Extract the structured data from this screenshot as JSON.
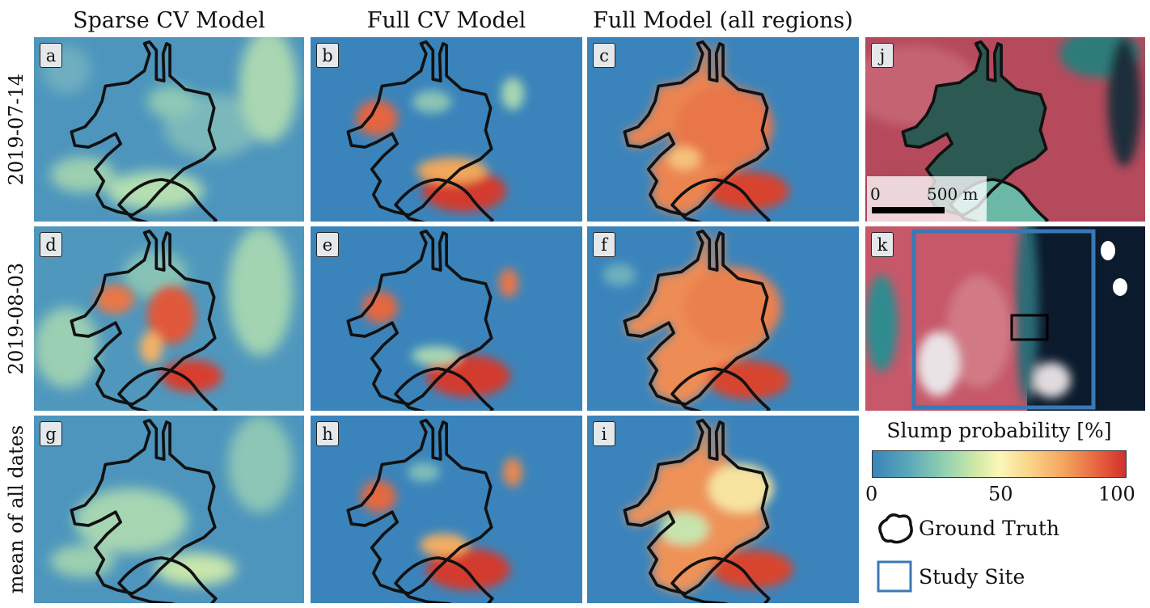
{
  "columns": [
    "Sparse CV Model",
    "Full CV Model",
    "Full Model (all regions)"
  ],
  "rows": [
    "2019-07-14",
    "2019-08-03",
    "mean of all dates"
  ],
  "panel_labels": [
    "a",
    "b",
    "c",
    "d",
    "e",
    "f",
    "g",
    "h",
    "i",
    "j",
    "k"
  ],
  "legend": {
    "title": "Slump probability [%]",
    "ticks": [
      "0",
      "50",
      "100"
    ],
    "ground_truth": "Ground Truth",
    "study_site": "Study Site"
  },
  "scalebar": {
    "start": "0",
    "end": "500 m"
  },
  "colors": {
    "low": "#3a84bb",
    "mid": "#fbf7b8",
    "high": "#d02f2c",
    "ground_truth_outline": "#111111",
    "study_site_outline": "#3a78b5"
  }
}
